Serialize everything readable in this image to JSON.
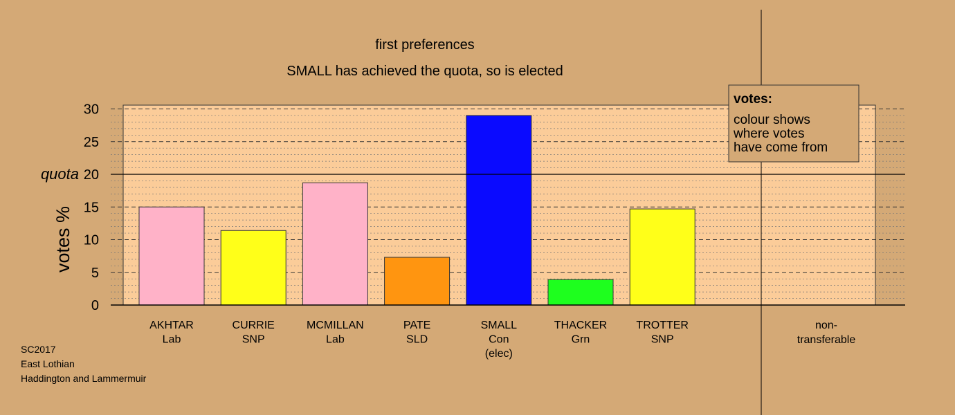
{
  "colors": {
    "background": "#d4a976",
    "plot_area": "#fbcc99",
    "Lab": "#ffb2c8",
    "SNP": "#ffff19",
    "SLD": "#ff9510",
    "Con": "#0a0aff",
    "Grn": "#1eff1e"
  },
  "chart_data": {
    "type": "bar",
    "title": "first preferences",
    "subtitle": "SMALL has achieved the quota, so is elected",
    "ylabel": "votes %",
    "ylim": [
      0,
      30
    ],
    "yticks": [
      "0",
      "5",
      "10",
      "15",
      "20",
      "25",
      "30"
    ],
    "grid": true,
    "quota": {
      "label": "quota",
      "value": 20
    },
    "categories": [
      {
        "name": "AKHTAR",
        "party": "Lab",
        "note": "",
        "value": 15.0,
        "color": "#ffb2c8"
      },
      {
        "name": "CURRIE",
        "party": "SNP",
        "note": "",
        "value": 11.4,
        "color": "#ffff19"
      },
      {
        "name": "MCMILLAN",
        "party": "Lab",
        "note": "",
        "value": 18.7,
        "color": "#ffb2c8"
      },
      {
        "name": "PATE",
        "party": "SLD",
        "note": "",
        "value": 7.3,
        "color": "#ff9510"
      },
      {
        "name": "SMALL",
        "party": "Con",
        "note": "(elec)",
        "value": 29.0,
        "color": "#0a0aff"
      },
      {
        "name": "THACKER",
        "party": "Grn",
        "note": "",
        "value": 3.9,
        "color": "#1eff1e"
      },
      {
        "name": "TROTTER",
        "party": "SNP",
        "note": "",
        "value": 14.7,
        "color": "#ffff19"
      }
    ],
    "nontransferable": {
      "label_line1": "non-",
      "label_line2": "transferable",
      "value": 0
    },
    "legend": {
      "heading": "votes:",
      "lines": [
        "colour shows",
        "where votes",
        "have come from"
      ],
      "position": "top-right"
    }
  },
  "footer": {
    "lines": [
      "SC2017",
      "East Lothian",
      "Haddington and Lammermuir"
    ]
  }
}
